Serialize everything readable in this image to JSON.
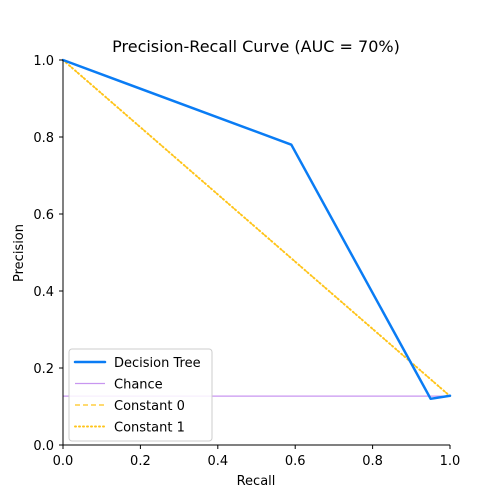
{
  "chart_data": {
    "type": "line",
    "title": "Precision-Recall Curve (AUC = 70%)",
    "xlabel": "Recall",
    "ylabel": "Precision",
    "xlim": [
      0,
      1
    ],
    "ylim": [
      0,
      1
    ],
    "xticks": [
      "0.0",
      "0.2",
      "0.4",
      "0.6",
      "0.8",
      "1.0"
    ],
    "yticks": [
      "0.0",
      "0.2",
      "0.4",
      "0.6",
      "0.8",
      "1.0"
    ],
    "grid": false,
    "legend_position": "lower-left",
    "series": [
      {
        "name": "Decision Tree",
        "color": "#0a7cf4",
        "style": "solid",
        "x": [
          0.0,
          0.59,
          0.95,
          1.0
        ],
        "y": [
          1.0,
          0.78,
          0.12,
          0.128
        ]
      },
      {
        "name": "Chance",
        "color": "#c896f0",
        "style": "solid-thin",
        "x": [
          0.0,
          1.0
        ],
        "y": [
          0.127,
          0.127
        ]
      },
      {
        "name": "Constant 0",
        "color": "#ffc41a",
        "style": "dashed",
        "x": [
          0.0,
          1.0
        ],
        "y": [
          1.0,
          0.127
        ]
      },
      {
        "name": "Constant 1",
        "color": "#ffc41a",
        "style": "dotted",
        "x": [
          0.0,
          1.0
        ],
        "y": [
          1.0,
          0.127
        ]
      }
    ]
  }
}
